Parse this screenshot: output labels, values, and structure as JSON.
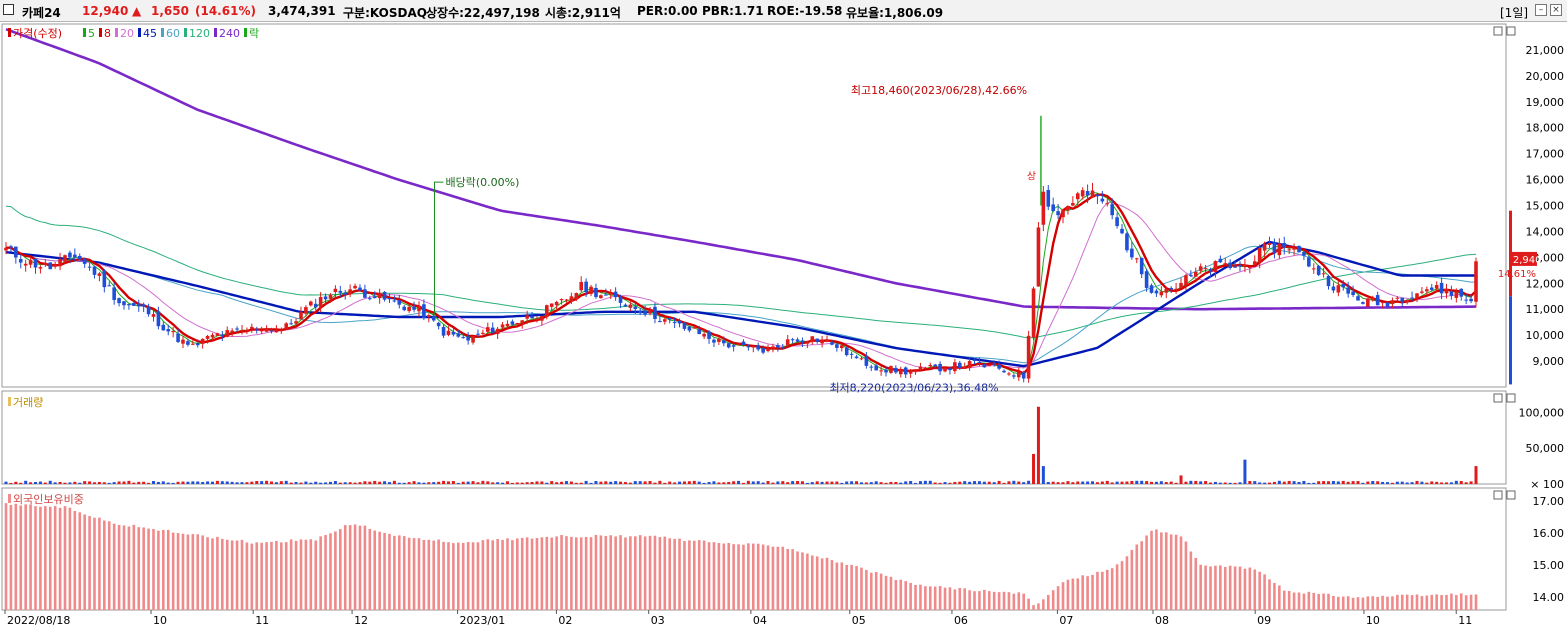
{
  "header": {
    "stock_name": "카페24",
    "price": "12,940",
    "change_arrow": "▲",
    "change": "1,650",
    "change_pct": "(14.61%)",
    "volume": "3,474,391",
    "market": "구분:KOSDAQ",
    "listed": "상장수:22,497,198",
    "market_cap": "시총:2,911억",
    "per": "PER:0.00",
    "pbr": "PBR:1.71",
    "roe": "ROE:-19.58",
    "float": "유보율:1,806.09",
    "period": "[1일]",
    "colors": {
      "up": "#e01b1b",
      "down": "#1f4fd6"
    }
  },
  "chart_data": [
    {
      "type": "candlestick",
      "panel": "price",
      "legend": [
        {
          "label": "가격(수정)",
          "color": "#d40000"
        },
        {
          "label": "5",
          "color": "#1aa81a"
        },
        {
          "label": "8",
          "color": "#d40000"
        },
        {
          "label": "20",
          "color": "#d070d0"
        },
        {
          "label": "45",
          "color": "#0018b5"
        },
        {
          "label": "60",
          "color": "#4aa3c9"
        },
        {
          "label": "120",
          "color": "#2ab07a"
        },
        {
          "label": "240",
          "color": "#7a28c8"
        },
        {
          "label": "락",
          "color": "#1aa81a"
        }
      ],
      "ylim": [
        8000,
        22000
      ],
      "yticks": [
        9000,
        10000,
        11000,
        12000,
        13000,
        14000,
        15000,
        16000,
        17000,
        18000,
        19000,
        20000,
        21000
      ],
      "ytick_labels": [
        "9,000",
        "10,000",
        "11,000",
        "12,000",
        "13,000",
        "14,000",
        "15,000",
        "16,000",
        "17,000",
        "18,000",
        "19,000",
        "20,000",
        "21,000"
      ],
      "x_labels": [
        "2022/08/18",
        "10",
        "11",
        "12",
        "2023/01",
        "02",
        "03",
        "04",
        "05",
        "06",
        "07",
        "08",
        "09",
        "10",
        "11"
      ],
      "close_path": [
        [
          "2022-08-18",
          13300
        ],
        [
          "2022-08-25",
          12800
        ],
        [
          "2022-09-01",
          12600
        ],
        [
          "2022-09-08",
          13100
        ],
        [
          "2022-09-15",
          12300
        ],
        [
          "2022-09-22",
          11200
        ],
        [
          "2022-09-29",
          11000
        ],
        [
          "2022-10-06",
          10200
        ],
        [
          "2022-10-13",
          9500
        ],
        [
          "2022-10-20",
          10000
        ],
        [
          "2022-10-27",
          10100
        ],
        [
          "2022-11-03",
          10300
        ],
        [
          "2022-11-10",
          10200
        ],
        [
          "2022-11-17",
          11000
        ],
        [
          "2022-11-24",
          11600
        ],
        [
          "2022-12-01",
          11800
        ],
        [
          "2022-12-08",
          11500
        ],
        [
          "2022-12-15",
          11200
        ],
        [
          "2022-12-22",
          10900
        ],
        [
          "2022-12-29",
          10100
        ],
        [
          "2023-01-05",
          9800
        ],
        [
          "2023-01-12",
          10200
        ],
        [
          "2023-01-19",
          10500
        ],
        [
          "2023-01-26",
          10800
        ],
        [
          "2023-02-02",
          11200
        ],
        [
          "2023-02-09",
          11900
        ],
        [
          "2023-02-16",
          11500
        ],
        [
          "2023-02-23",
          11200
        ],
        [
          "2023-03-02",
          10800
        ],
        [
          "2023-03-09",
          10400
        ],
        [
          "2023-03-16",
          10100
        ],
        [
          "2023-03-23",
          9700
        ],
        [
          "2023-03-30",
          9500
        ],
        [
          "2023-04-06",
          9400
        ],
        [
          "2023-04-13",
          9800
        ],
        [
          "2023-04-20",
          9900
        ],
        [
          "2023-04-27",
          9600
        ],
        [
          "2023-05-04",
          9000
        ],
        [
          "2023-05-11",
          8700
        ],
        [
          "2023-05-18",
          8600
        ],
        [
          "2023-05-25",
          8700
        ],
        [
          "2023-06-01",
          8800
        ],
        [
          "2023-06-08",
          8900
        ],
        [
          "2023-06-15",
          8700
        ],
        [
          "2023-06-23",
          8400
        ],
        [
          "2023-06-26",
          12300
        ],
        [
          "2023-06-28",
          15600
        ],
        [
          "2023-07-03",
          14600
        ],
        [
          "2023-07-10",
          15500
        ],
        [
          "2023-07-17",
          15200
        ],
        [
          "2023-07-24",
          13500
        ],
        [
          "2023-07-31",
          11800
        ],
        [
          "2023-08-07",
          11800
        ],
        [
          "2023-08-14",
          12400
        ],
        [
          "2023-08-21",
          12700
        ],
        [
          "2023-08-28",
          12600
        ],
        [
          "2023-09-04",
          13300
        ],
        [
          "2023-09-11",
          13500
        ],
        [
          "2023-09-18",
          12700
        ],
        [
          "2023-09-25",
          11900
        ],
        [
          "2023-10-02",
          11400
        ],
        [
          "2023-10-09",
          11200
        ],
        [
          "2023-10-16",
          11500
        ],
        [
          "2023-10-23",
          11800
        ],
        [
          "2023-10-30",
          11700
        ],
        [
          "2023-11-06",
          11290
        ],
        [
          "2023-11-07",
          12940
        ]
      ],
      "moving_averages": {
        "45": [
          [
            "2022-08-18",
            13200
          ],
          [
            "2022-09-15",
            12800
          ],
          [
            "2022-10-15",
            11900
          ],
          [
            "2022-11-15",
            10900
          ],
          [
            "2022-12-15",
            10700
          ],
          [
            "2023-01-15",
            10700
          ],
          [
            "2023-02-15",
            10900
          ],
          [
            "2023-03-15",
            10900
          ],
          [
            "2023-04-15",
            10300
          ],
          [
            "2023-05-15",
            9500
          ],
          [
            "2023-06-23",
            8800
          ],
          [
            "2023-07-15",
            9500
          ],
          [
            "2023-08-15",
            12000
          ],
          [
            "2023-09-05",
            13600
          ],
          [
            "2023-09-20",
            13200
          ],
          [
            "2023-10-15",
            12300
          ],
          [
            "2023-11-07",
            12300
          ]
        ],
        "240": [
          [
            "2022-08-18",
            21800
          ],
          [
            "2022-09-15",
            20500
          ],
          [
            "2022-10-15",
            18700
          ],
          [
            "2022-11-15",
            17300
          ],
          [
            "2022-12-15",
            16000
          ],
          [
            "2023-01-15",
            14800
          ],
          [
            "2023-02-15",
            14200
          ],
          [
            "2023-03-15",
            13600
          ],
          [
            "2023-04-15",
            12900
          ],
          [
            "2023-05-15",
            12000
          ],
          [
            "2023-06-23",
            11100
          ],
          [
            "2023-08-15",
            11000
          ],
          [
            "2023-11-07",
            11100
          ]
        ]
      },
      "annotations": [
        "최고18,460(2023/06/28),42.66%",
        "최저8,220(2023/06/23),36.48%",
        "배당락(0.00%)",
        "상"
      ],
      "current_price_label": "12,940",
      "current_change_label": "14.61%"
    },
    {
      "type": "bar",
      "panel": "volume",
      "title": "거래량",
      "yticks": [
        100,
        50000,
        100000
      ],
      "ytick_labels": [
        "× 100",
        "50,000",
        "100,000"
      ],
      "ylim": [
        0,
        130000
      ],
      "notable_values": [
        [
          "2023-06-26",
          42000
        ],
        [
          "2023-06-27",
          110000
        ],
        [
          "2023-06-28",
          108000
        ],
        [
          "2023-06-29",
          25000
        ],
        [
          "2023-08-10",
          12000
        ],
        [
          "2023-08-29",
          34000
        ],
        [
          "2023-11-07",
          25000
        ]
      ]
    },
    {
      "type": "bar",
      "panel": "foreign_ownership",
      "title": "외국인보유비중",
      "yticks": [
        14,
        15,
        16,
        17
      ],
      "ytick_labels": [
        "14.00",
        "15.00",
        "16.00",
        "17.00"
      ],
      "ylim": [
        13.6,
        17.4
      ],
      "path": [
        [
          "2022-08-18",
          16.9
        ],
        [
          "2022-09-05",
          16.8
        ],
        [
          "2022-09-20",
          16.3
        ],
        [
          "2022-10-10",
          16.0
        ],
        [
          "2022-11-01",
          15.7
        ],
        [
          "2022-11-20",
          15.8
        ],
        [
          "2022-12-01",
          16.3
        ],
        [
          "2022-12-15",
          15.9
        ],
        [
          "2023-01-01",
          15.7
        ],
        [
          "2023-02-01",
          15.9
        ],
        [
          "2023-03-01",
          15.9
        ],
        [
          "2023-03-20",
          15.7
        ],
        [
          "2023-04-10",
          15.6
        ],
        [
          "2023-05-01",
          15.0
        ],
        [
          "2023-05-20",
          14.4
        ],
        [
          "2023-06-10",
          14.2
        ],
        [
          "2023-06-23",
          14.1
        ],
        [
          "2023-06-26",
          13.7
        ],
        [
          "2023-07-05",
          14.5
        ],
        [
          "2023-07-20",
          14.9
        ],
        [
          "2023-08-01",
          16.1
        ],
        [
          "2023-08-10",
          15.9
        ],
        [
          "2023-08-15",
          15.0
        ],
        [
          "2023-09-01",
          14.9
        ],
        [
          "2023-09-10",
          14.2
        ],
        [
          "2023-10-01",
          14.0
        ],
        [
          "2023-11-07",
          14.1
        ]
      ]
    }
  ]
}
